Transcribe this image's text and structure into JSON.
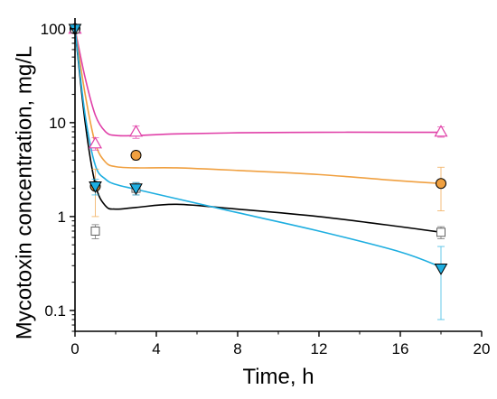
{
  "chart_data": {
    "type": "scatter",
    "xlabel": "Time, h",
    "ylabel": "Mycotoxin concentration, mg/L",
    "xlim": [
      0,
      20
    ],
    "ylim": [
      0.06,
      130
    ],
    "yscale": "log",
    "xticks": [
      0,
      4,
      8,
      12,
      16,
      20
    ],
    "xtick_labels": [
      "0",
      "4",
      "8",
      "12",
      "16",
      "20"
    ],
    "yticks": [
      0.1,
      1,
      10,
      100
    ],
    "ytick_labels": [
      "0.1",
      "1",
      "10",
      "100"
    ],
    "grid": false,
    "series": [
      {
        "marker": "triangle-up-open",
        "color": "#e040a8",
        "points": [
          {
            "x": 0,
            "y": 100,
            "err": 0
          },
          {
            "x": 1,
            "y": 6.0,
            "err": 0.9
          },
          {
            "x": 3,
            "y": 8.0,
            "err": 1.2
          },
          {
            "x": 18,
            "y": 8.0,
            "err": 1.0
          }
        ],
        "fit": [
          [
            0,
            100
          ],
          [
            0.5,
            30
          ],
          [
            1,
            12
          ],
          [
            1.5,
            8
          ],
          [
            2,
            7.3
          ],
          [
            3,
            7.3
          ],
          [
            5,
            7.6
          ],
          [
            8,
            7.8
          ],
          [
            12,
            7.9
          ],
          [
            16,
            7.9
          ],
          [
            18,
            7.9
          ]
        ]
      },
      {
        "marker": "circle-filled",
        "color": "#f0a040",
        "points": [
          {
            "x": 0,
            "y": 100,
            "err": 0
          },
          {
            "x": 1,
            "y": 2.1,
            "err": 1.1
          },
          {
            "x": 3,
            "y": 4.5,
            "err": 0.5
          },
          {
            "x": 18,
            "y": 2.25,
            "err": 1.1
          }
        ],
        "fit": [
          [
            0,
            100
          ],
          [
            0.5,
            20
          ],
          [
            1,
            6
          ],
          [
            1.5,
            3.8
          ],
          [
            2,
            3.4
          ],
          [
            3,
            3.3
          ],
          [
            5,
            3.3
          ],
          [
            8,
            3.1
          ],
          [
            12,
            2.8
          ],
          [
            16,
            2.4
          ],
          [
            18,
            2.25
          ]
        ]
      },
      {
        "marker": "square-open",
        "color": "#606060",
        "points": [
          {
            "x": 0,
            "y": 100,
            "err": 0
          },
          {
            "x": 1,
            "y": 0.7,
            "err": 0.12
          },
          {
            "x": 3,
            "y": 2.0,
            "err": 0.3
          },
          {
            "x": 18,
            "y": 0.68,
            "err": 0.1
          }
        ],
        "fit": [
          [
            0,
            100
          ],
          [
            0.5,
            10
          ],
          [
            1,
            2.2
          ],
          [
            1.5,
            1.3
          ],
          [
            2,
            1.2
          ],
          [
            3,
            1.25
          ],
          [
            5,
            1.35
          ],
          [
            8,
            1.2
          ],
          [
            12,
            1.0
          ],
          [
            16,
            0.78
          ],
          [
            18,
            0.68
          ]
        ]
      },
      {
        "marker": "triangle-down-filled",
        "color": "#1eaee0",
        "points": [
          {
            "x": 0,
            "y": 100,
            "err": 0
          },
          {
            "x": 1,
            "y": 2.1,
            "err": 0.4
          },
          {
            "x": 3,
            "y": 2.0,
            "err": 0.3
          },
          {
            "x": 18,
            "y": 0.28,
            "err": 0.2
          }
        ],
        "fit": [
          [
            0,
            100
          ],
          [
            0.5,
            12
          ],
          [
            1,
            3.5
          ],
          [
            1.5,
            2.5
          ],
          [
            2,
            2.2
          ],
          [
            3,
            1.95
          ],
          [
            5,
            1.55
          ],
          [
            8,
            1.1
          ],
          [
            12,
            0.7
          ],
          [
            16,
            0.42
          ],
          [
            18,
            0.29
          ]
        ]
      }
    ]
  }
}
